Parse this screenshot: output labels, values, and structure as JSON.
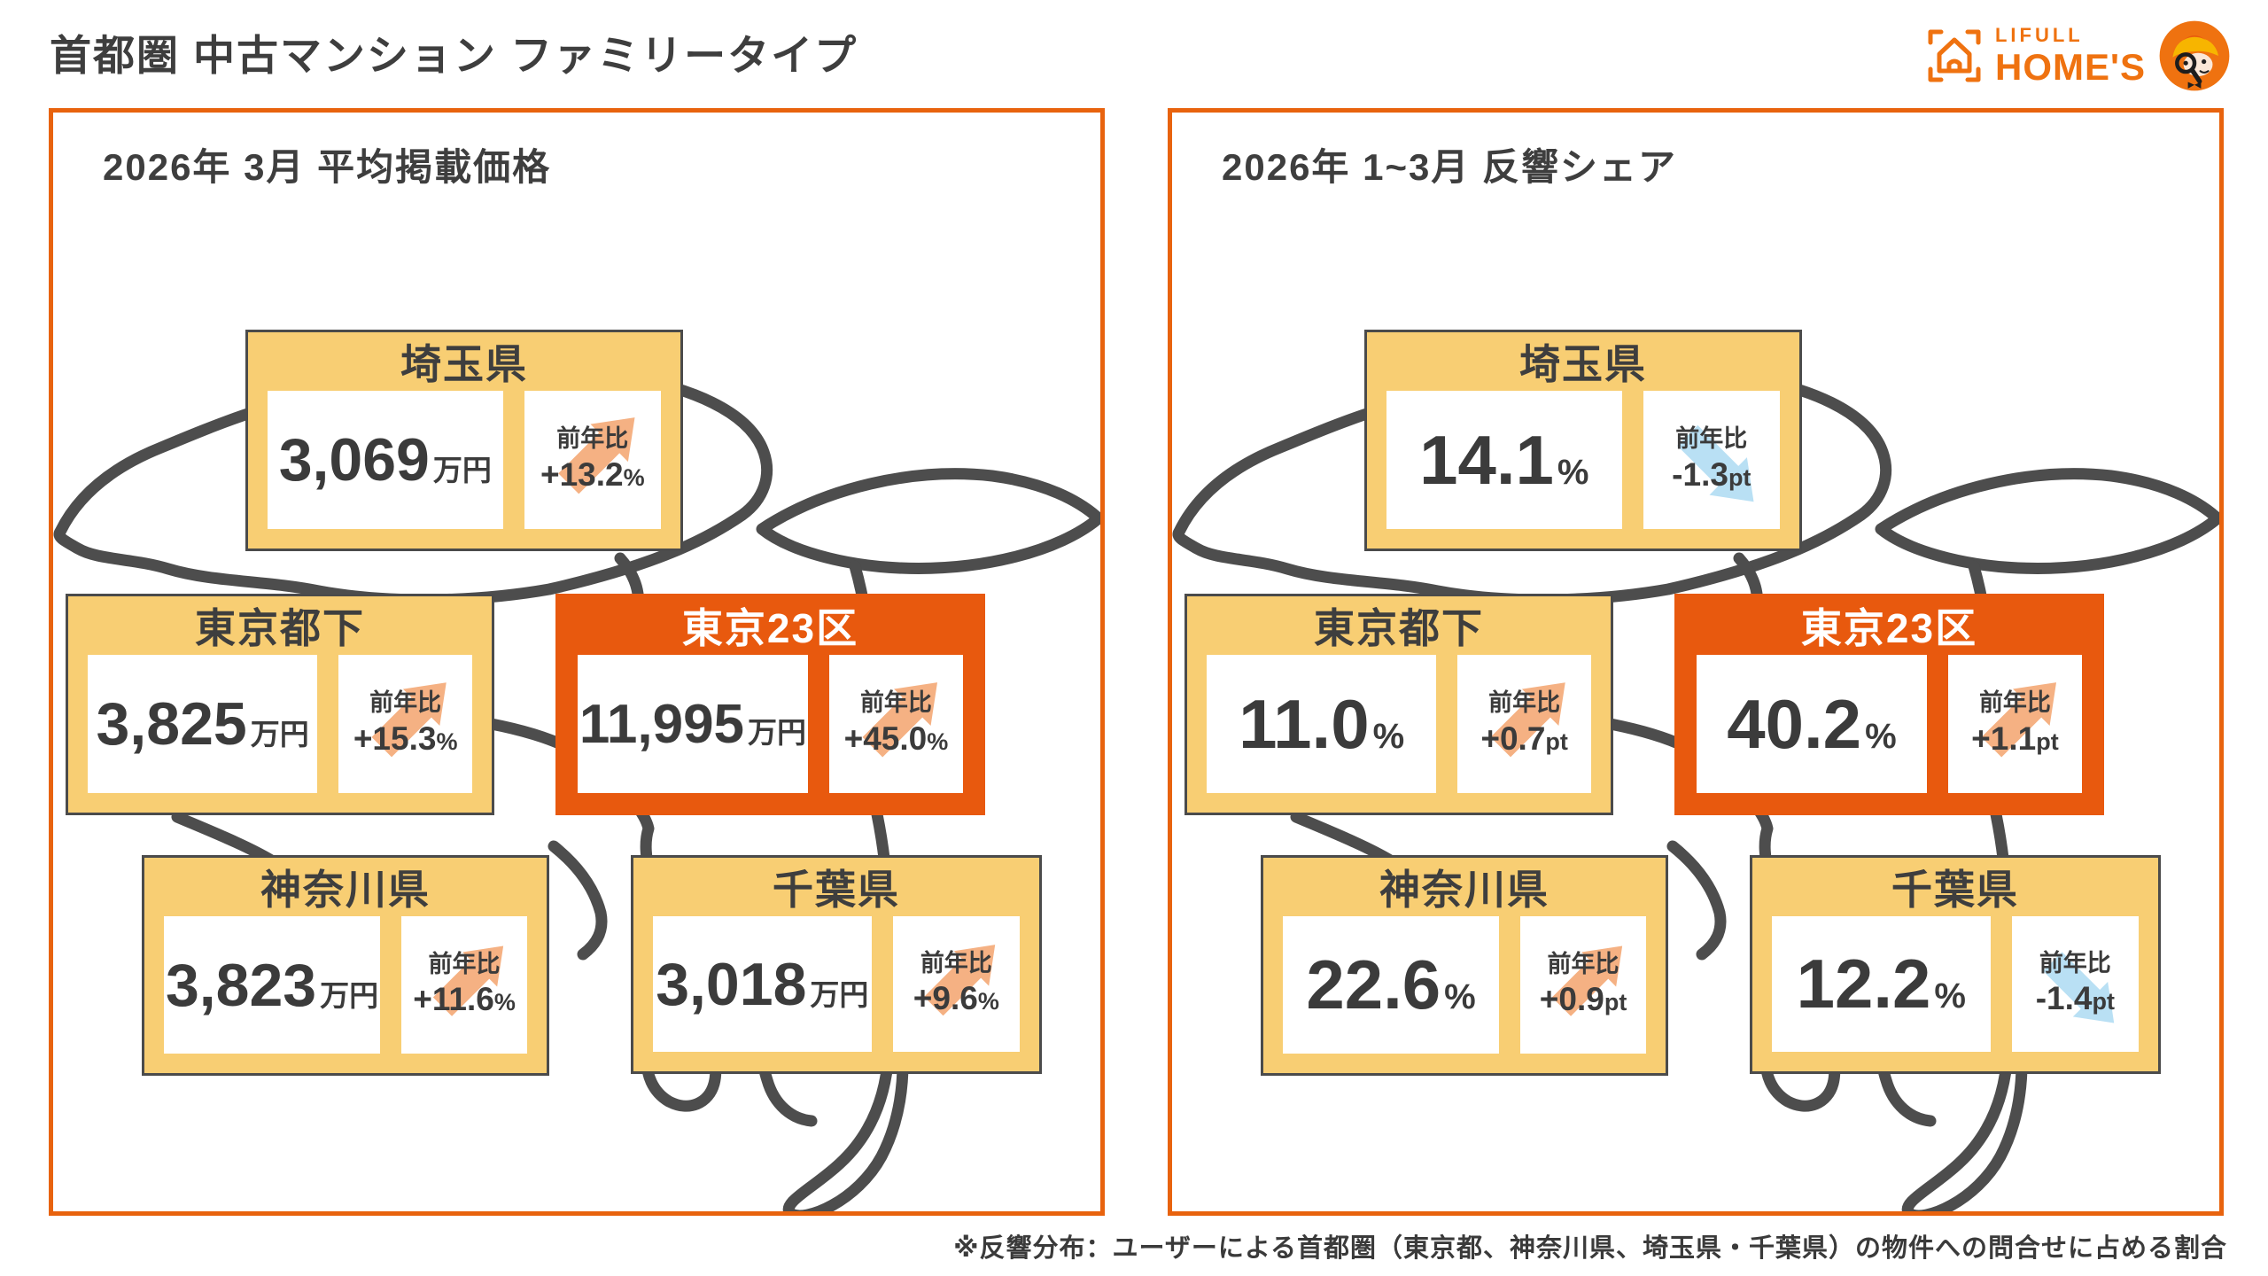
{
  "page_title": "首都圏 中古マンション ファミリータイプ",
  "logo": {
    "brand_line1": "LIFULL",
    "brand_line2": "HOME'S"
  },
  "panels": [
    {
      "title": "2026年 3月 平均掲載価格",
      "cards": [
        {
          "key": "saitama",
          "region": "埼玉県",
          "value": "3,069",
          "unit": "万円",
          "yoy_label": "前年比",
          "yoy_value": "+13.2",
          "yoy_unit": "%",
          "trend": "up",
          "highlight": false
        },
        {
          "key": "tokyo-tama",
          "region": "東京都下",
          "value": "3,825",
          "unit": "万円",
          "yoy_label": "前年比",
          "yoy_value": "+15.3",
          "yoy_unit": "%",
          "trend": "up",
          "highlight": false
        },
        {
          "key": "tokyo-23ku",
          "region": "東京23区",
          "value": "11,995",
          "unit": "万円",
          "yoy_label": "前年比",
          "yoy_value": "+45.0",
          "yoy_unit": "%",
          "trend": "up",
          "highlight": true
        },
        {
          "key": "kanagawa",
          "region": "神奈川県",
          "value": "3,823",
          "unit": "万円",
          "yoy_label": "前年比",
          "yoy_value": "+11.6",
          "yoy_unit": "%",
          "trend": "up",
          "highlight": false
        },
        {
          "key": "chiba",
          "region": "千葉県",
          "value": "3,018",
          "unit": "万円",
          "yoy_label": "前年比",
          "yoy_value": "+9.6",
          "yoy_unit": "%",
          "trend": "up",
          "highlight": false
        }
      ]
    },
    {
      "title": "2026年 1~3月 反響シェア",
      "cards": [
        {
          "key": "saitama",
          "region": "埼玉県",
          "value": "14.1",
          "unit": "%",
          "yoy_label": "前年比",
          "yoy_value": "-1.3",
          "yoy_unit": "pt",
          "trend": "down",
          "highlight": false
        },
        {
          "key": "tokyo-tama",
          "region": "東京都下",
          "value": "11.0",
          "unit": "%",
          "yoy_label": "前年比",
          "yoy_value": "+0.7",
          "yoy_unit": "pt",
          "trend": "up",
          "highlight": false
        },
        {
          "key": "tokyo-23ku",
          "region": "東京23区",
          "value": "40.2",
          "unit": "%",
          "yoy_label": "前年比",
          "yoy_value": "+1.1",
          "yoy_unit": "pt",
          "trend": "up",
          "highlight": true
        },
        {
          "key": "kanagawa",
          "region": "神奈川県",
          "value": "22.6",
          "unit": "%",
          "yoy_label": "前年比",
          "yoy_value": "+0.9",
          "yoy_unit": "pt",
          "trend": "up",
          "highlight": false
        },
        {
          "key": "chiba",
          "region": "千葉県",
          "value": "12.2",
          "unit": "%",
          "yoy_label": "前年比",
          "yoy_value": "-1.4",
          "yoy_unit": "pt",
          "trend": "down",
          "highlight": false
        }
      ]
    }
  ],
  "footnote": "※反響分布：ユーザーによる首都圏（東京都、神奈川県、埼玉県・千葉県）の物件への問合せに占める割合",
  "colors": {
    "accent_orange": "#e8590e",
    "panel_border": "#e8630e",
    "card_yellow": "#f8ce73",
    "up_arrow": "#f5b183",
    "down_arrow": "#b9e0f4",
    "ink": "#3e3e3e",
    "map_line": "#4d4d4d",
    "logo_orange": "#ef7210"
  },
  "chart_data": [
    {
      "type": "table",
      "title": "2026年 3月 平均掲載価格",
      "unit": "万円",
      "categories": [
        "埼玉県",
        "東京都下",
        "東京23区",
        "神奈川県",
        "千葉県"
      ],
      "values": [
        3069,
        3825,
        11995,
        3823,
        3018
      ],
      "yoy_percent": [
        13.2,
        15.3,
        45.0,
        11.6,
        9.6
      ],
      "highlighted_category": "東京23区"
    },
    {
      "type": "table",
      "title": "2026年 1~3月 反響シェア",
      "unit": "%",
      "categories": [
        "埼玉県",
        "東京都下",
        "東京23区",
        "神奈川県",
        "千葉県"
      ],
      "values": [
        14.1,
        11.0,
        40.2,
        22.6,
        12.2
      ],
      "yoy_points": [
        -1.3,
        0.7,
        1.1,
        0.9,
        -1.4
      ],
      "highlighted_category": "東京23区"
    }
  ]
}
